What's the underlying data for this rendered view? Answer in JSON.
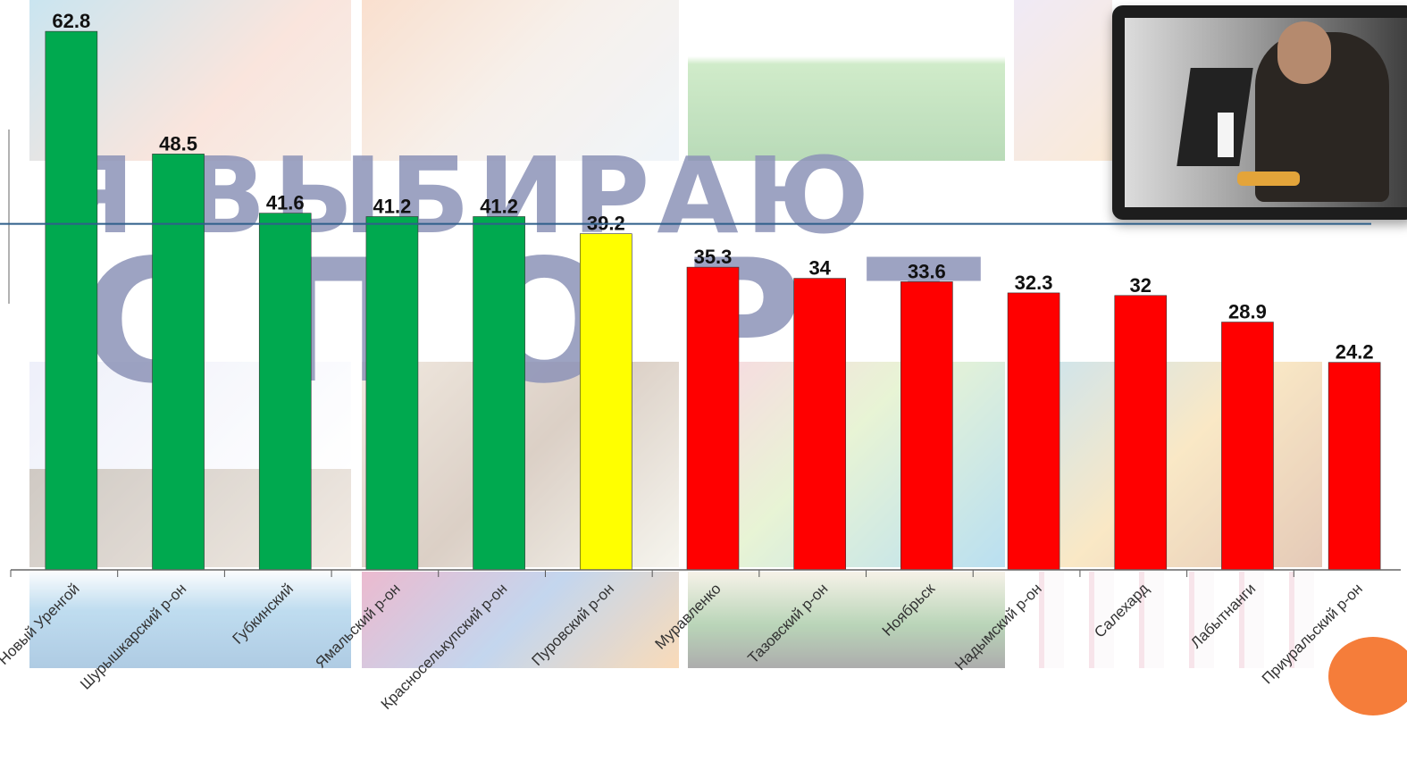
{
  "chart_data": {
    "type": "bar",
    "categories": [
      "Новый Уренгой",
      "Шурышкарский р-он",
      "Губкинский",
      "Ямальский р-он",
      "Красноселькупский р-он",
      "Пуровский р-он",
      "Муравленко",
      "Тазовский р-он",
      "Ноябрьск",
      "Надымский р-он",
      "Салехард",
      "Лабытнанги",
      "Приуральский р-он"
    ],
    "values": [
      62.8,
      48.5,
      41.6,
      41.2,
      41.2,
      39.2,
      35.3,
      34,
      33.6,
      32.3,
      32,
      28.9,
      24.2
    ],
    "value_labels": [
      "62.8",
      "48.5",
      "41.6",
      "41.2",
      "41.2",
      "39.2",
      "35.3",
      "34",
      "33.6",
      "32.3",
      "32",
      "28.9",
      "24.2"
    ],
    "bar_colors": [
      "#00a94f",
      "#00a94f",
      "#00a94f",
      "#00a94f",
      "#00a94f",
      "#ffff00",
      "#ff0000",
      "#ff0000",
      "#ff0000",
      "#ff0000",
      "#ff0000",
      "#ff0000",
      "#ff0000"
    ],
    "reference_line": 39.2,
    "reference_line_color": "#2f5f8a",
    "ylim": [
      0,
      65
    ],
    "grid": false
  },
  "background": {
    "title_line1": "Я ВЫБИРАЮ",
    "title_line2": "СПОРТ"
  }
}
